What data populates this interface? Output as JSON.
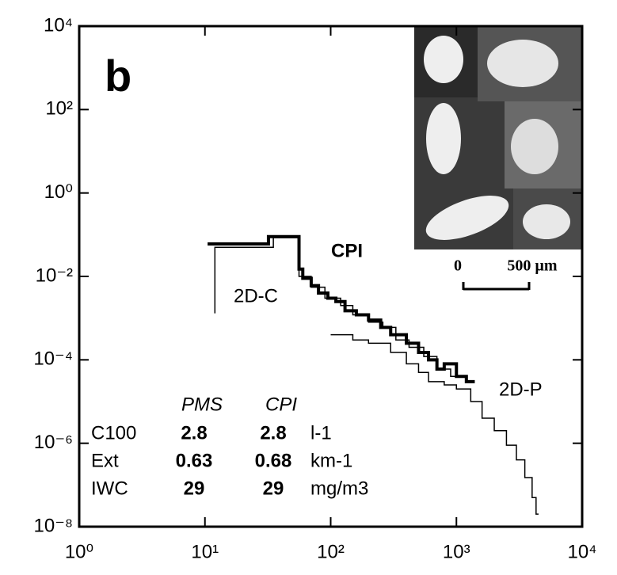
{
  "chart_data": {
    "type": "line",
    "log_x": true,
    "log_y": true,
    "panel_label": "b",
    "xlim": [
      1,
      10000
    ],
    "xticks": [
      {
        "value": 1,
        "label": "10⁰"
      },
      {
        "value": 10,
        "label": "10¹"
      },
      {
        "value": 100,
        "label": "10²"
      },
      {
        "value": 1000,
        "label": "10³"
      },
      {
        "value": 10000,
        "label": "10⁴"
      }
    ],
    "ylim": [
      1e-08,
      10000
    ],
    "yticks": [
      {
        "value": 1e-08,
        "label": "10⁻⁸"
      },
      {
        "value": 1e-06,
        "label": "10⁻⁶"
      },
      {
        "value": 0.0001,
        "label": "10⁻⁴"
      },
      {
        "value": 0.01,
        "label": "10⁻²"
      },
      {
        "value": 1,
        "label": "10⁰"
      },
      {
        "value": 100,
        "label": "10²"
      },
      {
        "value": 10000,
        "label": "10⁴"
      }
    ],
    "series": [
      {
        "name": "CPI",
        "color": "#000000",
        "linestyle": "thick",
        "x": [
          10.5,
          32,
          56,
          60,
          70,
          80,
          95,
          110,
          130,
          160,
          200,
          250,
          300,
          400,
          500,
          600,
          700,
          800,
          1000,
          1200,
          1400
        ],
        "values": [
          0.06,
          0.09,
          0.015,
          0.009,
          0.006,
          0.004,
          0.003,
          0.0025,
          0.0015,
          0.0012,
          0.0009,
          0.0006,
          0.0004,
          0.00025,
          0.00015,
          0.0001,
          6e-05,
          8e-05,
          4e-05,
          3e-05,
          3e-05
        ]
      },
      {
        "name": "2D-C",
        "color": "#000000",
        "linestyle": "thin",
        "x": [
          12,
          12,
          35,
          56,
          70,
          90,
          120,
          150,
          200,
          260,
          330,
          420,
          550,
          700,
          900,
          1200,
          1300
        ],
        "values": [
          0.0013,
          0.05,
          0.085,
          0.01,
          0.0055,
          0.003,
          0.002,
          0.0012,
          0.0008,
          0.0006,
          0.0003,
          0.0002,
          0.00012,
          6e-05,
          4e-05,
          3e-05,
          3e-05
        ]
      },
      {
        "name": "2D-P",
        "color": "#000000",
        "linestyle": "thin",
        "x": [
          100,
          150,
          200,
          300,
          400,
          500,
          600,
          800,
          1000,
          1300,
          1600,
          2000,
          2500,
          3000,
          3500,
          4000,
          4300,
          4500
        ],
        "values": [
          0.0004,
          0.0003,
          0.00025,
          0.00015,
          8e-05,
          5e-05,
          3e-05,
          2.5e-05,
          2e-05,
          1e-05,
          4e-06,
          2e-06,
          9e-07,
          4e-07,
          1.5e-07,
          5e-08,
          2e-08,
          2e-08
        ]
      }
    ],
    "table": {
      "headers": [
        "PMS",
        "CPI"
      ],
      "rows": [
        {
          "label": "C100",
          "values": [
            2.8,
            2.8
          ],
          "unit": "l-1"
        },
        {
          "label": "Ext",
          "values": [
            0.63,
            0.68
          ],
          "unit": "km-1"
        },
        {
          "label": "IWC",
          "values": [
            29,
            29
          ],
          "unit": "mg/m3"
        }
      ]
    },
    "inset_scale": [
      "0",
      "500 µm"
    ]
  }
}
